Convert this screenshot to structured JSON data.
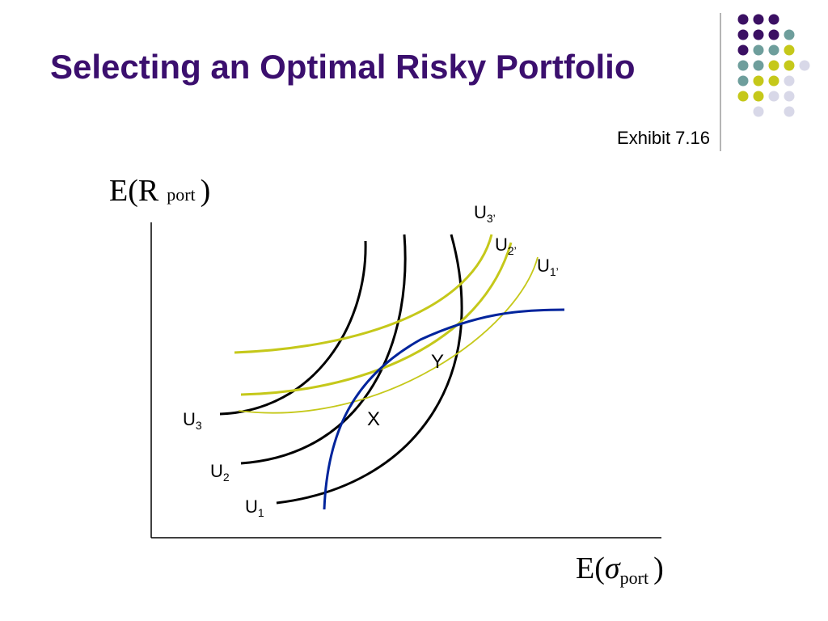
{
  "slide": {
    "title": "Selecting an Optimal Risky Portfolio",
    "exhibit": "Exhibit 7.16",
    "title_color": "#3b0f6e"
  },
  "decoration": {
    "dot_grid": [
      [
        "#3b1063",
        "#3b1063",
        "#3b1063",
        null,
        null
      ],
      [
        "#3b1063",
        "#3b1063",
        "#3b1063",
        "#6e9e9c",
        null
      ],
      [
        "#3b1063",
        "#6e9e9c",
        "#6e9e9c",
        "#c5c81a",
        null
      ],
      [
        "#6e9e9c",
        "#6e9e9c",
        "#c5c81a",
        "#c5c81a",
        "#d8d8e8"
      ],
      [
        "#6e9e9c",
        "#c5c81a",
        "#c5c81a",
        "#d8d8e8",
        null
      ],
      [
        "#c5c81a",
        "#c5c81a",
        "#d8d8e8",
        "#d8d8e8",
        null
      ],
      [
        null,
        "#d8d8e8",
        null,
        "#d8d8e8",
        null
      ]
    ]
  },
  "chart_data": {
    "type": "diagram",
    "y_axis_label": {
      "base": "E(R",
      "subscript": "port",
      "close": ")"
    },
    "x_axis_label": {
      "base": "E(",
      "symbol": "σ",
      "subscript": "port",
      "close": ")"
    },
    "colors": {
      "original_curves": "#000000",
      "new_curves": "#c5c81a",
      "frontier": "#00249c"
    },
    "original_curves": [
      {
        "label": "U",
        "sub": "3"
      },
      {
        "label": "U",
        "sub": "2"
      },
      {
        "label": "U",
        "sub": "1"
      }
    ],
    "new_curves": [
      {
        "label": "U",
        "sub": "3’"
      },
      {
        "label": "U",
        "sub": "2’"
      },
      {
        "label": "U",
        "sub": "1’"
      }
    ],
    "points": [
      {
        "label": "X"
      },
      {
        "label": "Y"
      }
    ]
  }
}
